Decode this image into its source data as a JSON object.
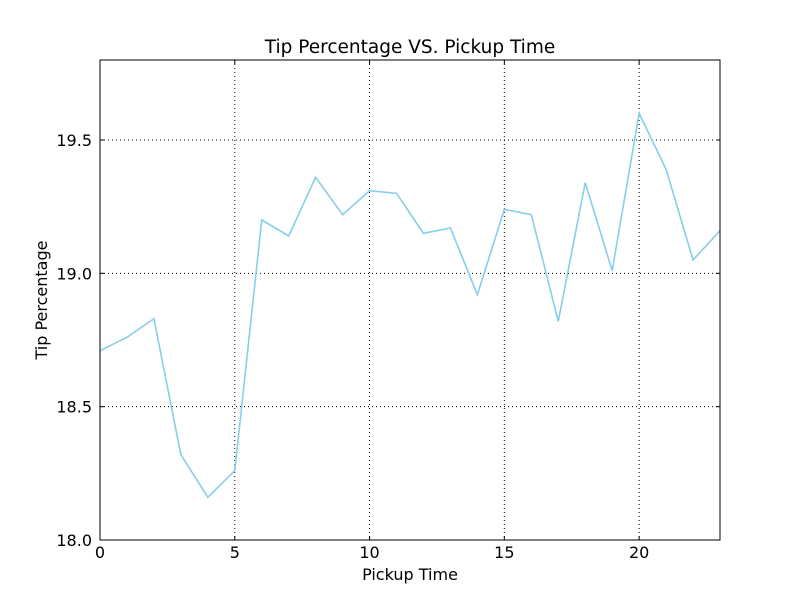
{
  "chart_data": {
    "type": "line",
    "title": "Tip Percentage VS. Pickup Time",
    "xlabel": "Pickup Time",
    "ylabel": "Tip Percentage",
    "xlim": [
      0,
      23
    ],
    "ylim": [
      18.0,
      19.8
    ],
    "xticks": [
      0,
      5,
      10,
      15,
      20
    ],
    "xtick_labels": [
      "0",
      "5",
      "10",
      "15",
      "20"
    ],
    "yticks": [
      18.0,
      18.5,
      19.0,
      19.5
    ],
    "ytick_labels": [
      "18.0",
      "18.5",
      "19.0",
      "19.5"
    ],
    "grid": true,
    "legend": "none",
    "series": [
      {
        "color": "#87CEEB",
        "x": [
          0,
          1,
          2,
          3,
          4,
          5,
          6,
          7,
          8,
          9,
          10,
          11,
          12,
          13,
          14,
          15,
          16,
          17,
          18,
          19,
          20,
          21,
          22,
          23
        ],
        "y": [
          18.71,
          18.76,
          18.83,
          18.32,
          18.16,
          18.26,
          19.2,
          19.14,
          19.36,
          19.22,
          19.31,
          19.3,
          19.15,
          19.17,
          18.92,
          19.24,
          19.22,
          18.82,
          19.34,
          19.01,
          19.6,
          19.39,
          19.05,
          19.16
        ]
      }
    ]
  }
}
